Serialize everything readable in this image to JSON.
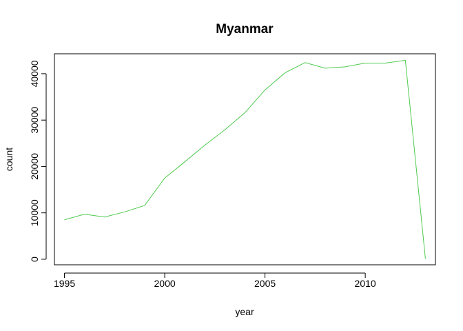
{
  "chart_data": {
    "type": "line",
    "title": "Myanmar",
    "xlabel": "year",
    "ylabel": "count",
    "xlim": [
      1994.5,
      2013.5
    ],
    "ylim": [
      -1200,
      44300
    ],
    "x_ticks": [
      1995,
      2000,
      2005,
      2010
    ],
    "x_tick_labels": [
      "1995",
      "2000",
      "2005",
      "2010"
    ],
    "y_ticks": [
      0,
      10000,
      20000,
      30000,
      40000
    ],
    "y_tick_labels": [
      "0",
      "10000",
      "20000",
      "30000",
      "40000"
    ],
    "grid": false,
    "series": [
      {
        "name": "count",
        "color": "#4dc94d",
        "x": [
          1995,
          1996,
          1997,
          1998,
          1999,
          2000,
          2001,
          2002,
          2003,
          2004,
          2005,
          2006,
          2007,
          2008,
          2009,
          2010,
          2011,
          2012,
          2013
        ],
        "values": [
          8500,
          9700,
          9100,
          10200,
          11600,
          17500,
          21000,
          24600,
          27900,
          31600,
          36500,
          40200,
          42400,
          41200,
          41500,
          42300,
          42300,
          42900,
          100
        ]
      }
    ]
  }
}
